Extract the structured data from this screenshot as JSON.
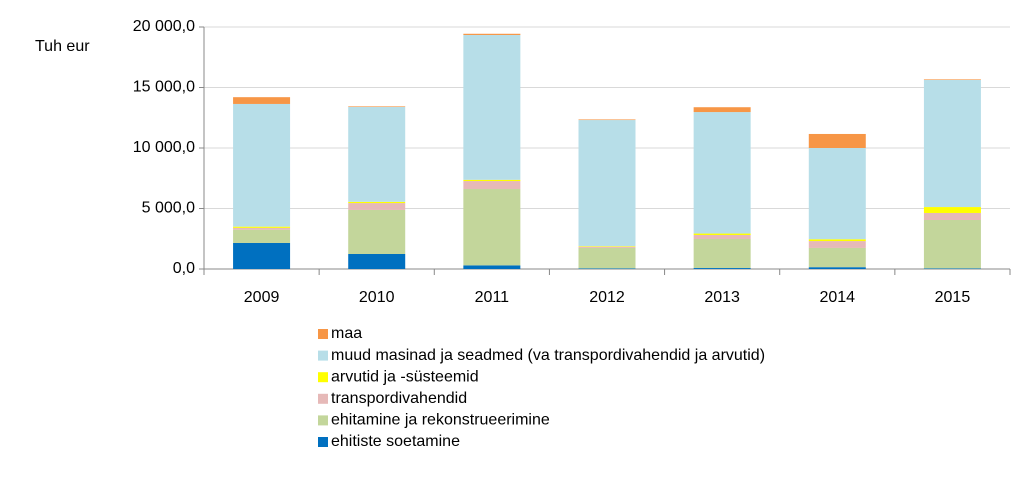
{
  "chart_data": {
    "type": "stacked_bar",
    "y_label": "Tuh eur",
    "categories": [
      "2009",
      "2010",
      "2011",
      "2012",
      "2013",
      "2014",
      "2015"
    ],
    "series": [
      {
        "name": "ehitiste soetamine",
        "color": "#0070c0",
        "values": [
          2150,
          1240,
          300,
          50,
          80,
          150,
          50
        ]
      },
      {
        "name": "ehitamine ja rekonstrueerimine",
        "color": "#c3d69b",
        "values": [
          1100,
          3640,
          6310,
          1690,
          2400,
          1590,
          4000
        ]
      },
      {
        "name": "transpordivahendid",
        "color": "#e6b9b8",
        "values": [
          150,
          570,
          660,
          100,
          330,
          570,
          580
        ]
      },
      {
        "name": "arvutid ja -süsteemid",
        "color": "#ffff00",
        "values": [
          100,
          100,
          100,
          50,
          120,
          150,
          490
        ]
      },
      {
        "name": "muud masinad ja seadmed (va transpordivahendid ja arvutid)",
        "color": "#b7dee8",
        "values": [
          10140,
          7840,
          11970,
          10420,
          10040,
          7540,
          10500
        ]
      },
      {
        "name": "maa",
        "color": "#f79646",
        "values": [
          560,
          50,
          100,
          50,
          400,
          1160,
          50
        ]
      }
    ],
    "ylim": [
      0,
      20000
    ],
    "yticks": [
      {
        "value": 0,
        "label": "0,0"
      },
      {
        "value": 5000,
        "label": "5 000,0"
      },
      {
        "value": 10000,
        "label": "10 000,0"
      },
      {
        "value": 15000,
        "label": "15 000,0"
      },
      {
        "value": 20000,
        "label": "20 000,0"
      }
    ],
    "grid": true
  }
}
